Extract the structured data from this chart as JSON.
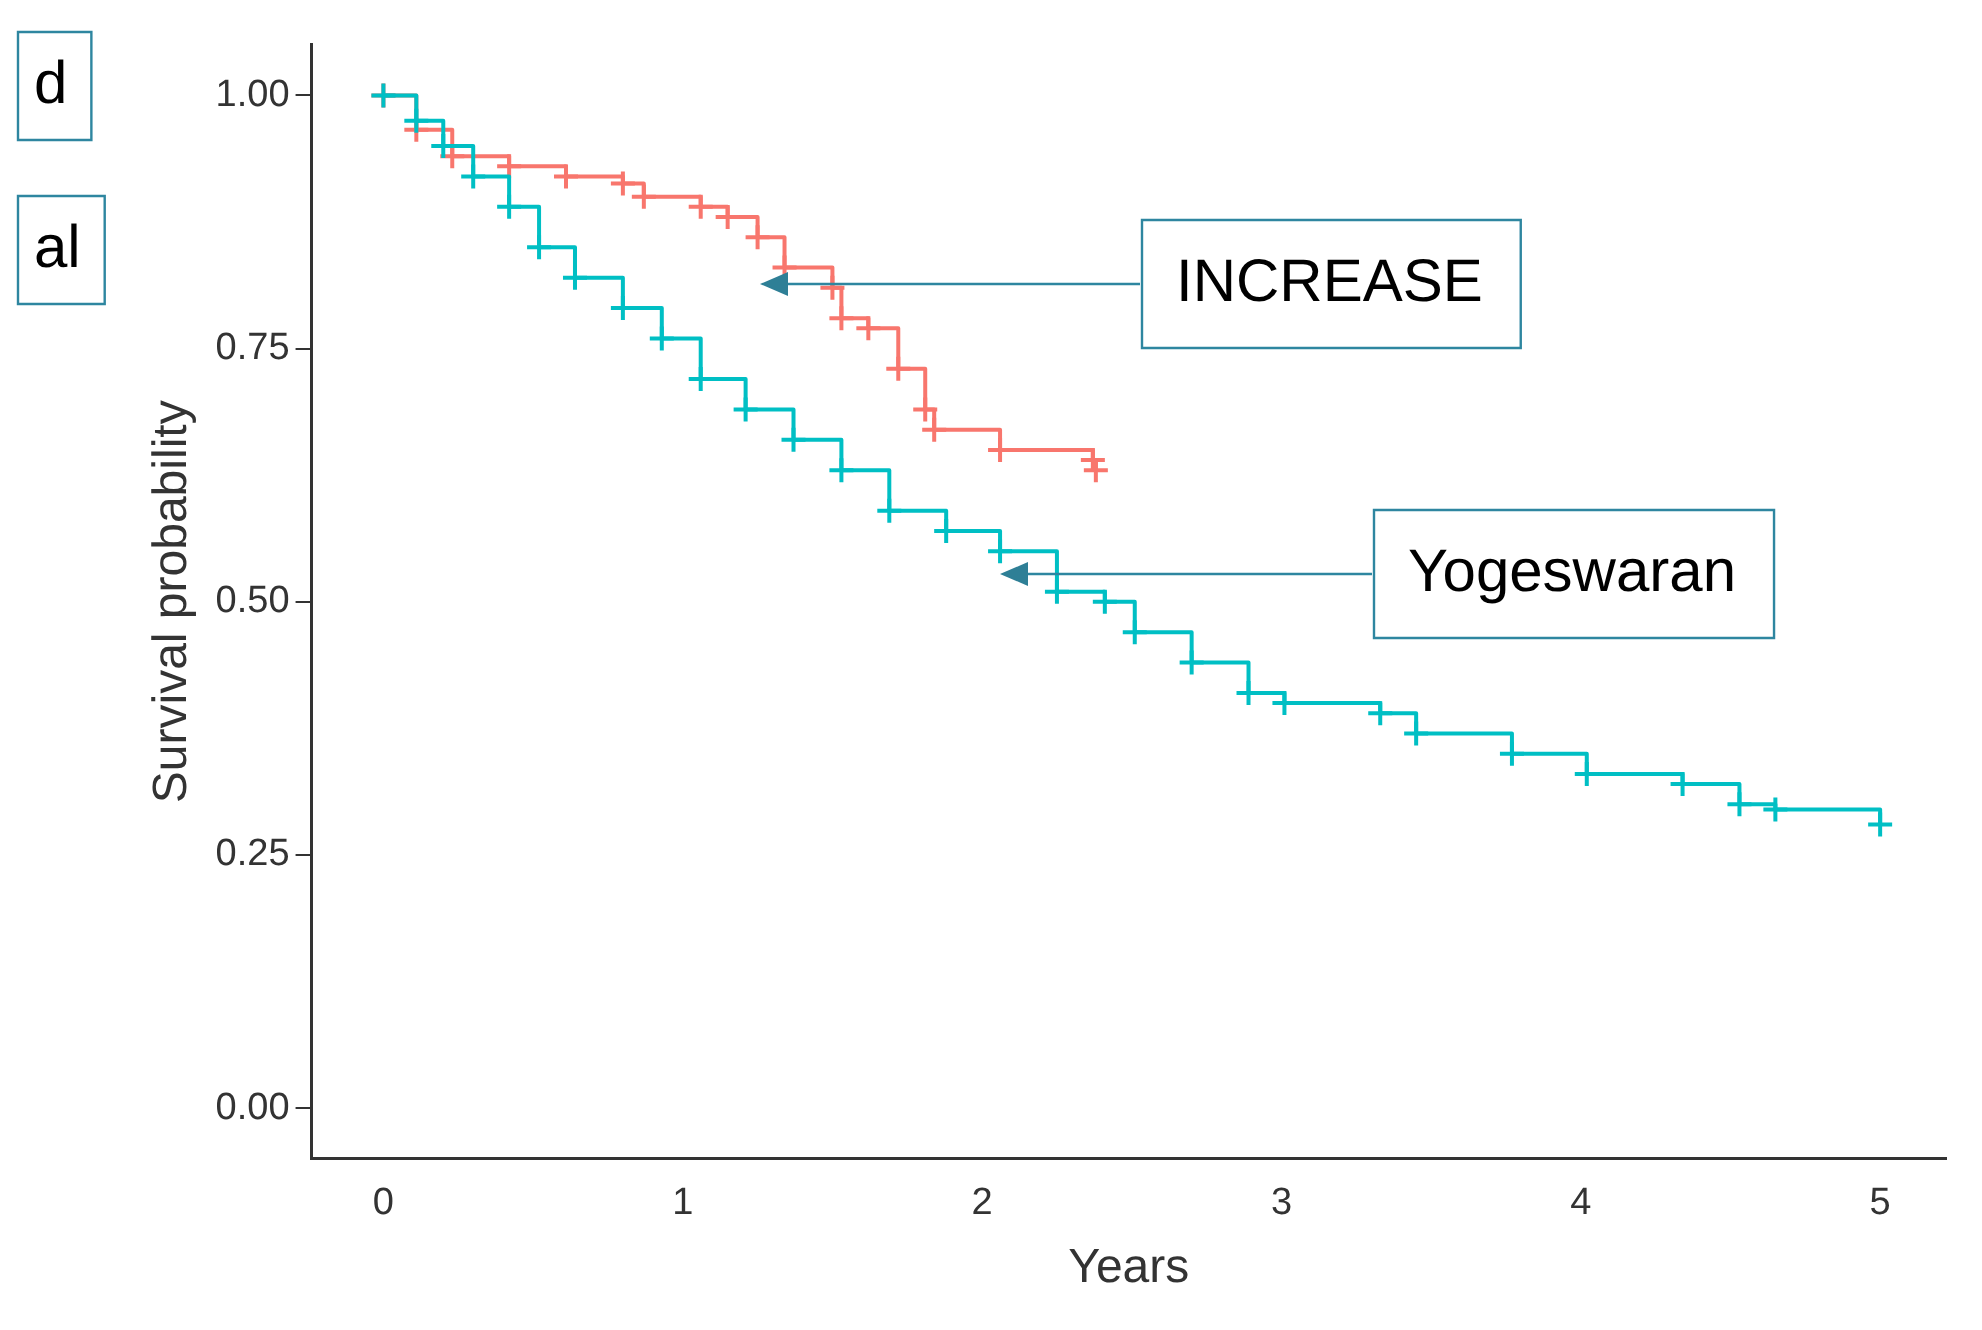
{
  "chart_data": {
    "type": "step",
    "xlabel": "Years",
    "ylabel": "Survival probability",
    "xlim": [
      -0.24,
      5.22
    ],
    "ylim": [
      -0.05,
      1.05
    ],
    "xticks": [
      0,
      1,
      2,
      3,
      4,
      5
    ],
    "yticks": [
      {
        "value": 0,
        "label": "0.00"
      },
      {
        "value": 0.25,
        "label": "0.25"
      },
      {
        "value": 0.5,
        "label": "0.50"
      },
      {
        "value": 0.75,
        "label": "0.75"
      },
      {
        "value": 1,
        "label": "1.00"
      }
    ],
    "grid": false,
    "legend": false,
    "marker": "cross",
    "line_style": "solid",
    "series": [
      {
        "color": "#f8766d",
        "x": [
          0,
          0.11,
          0.23,
          0.42,
          0.61,
          0.8,
          0.87,
          1.06,
          1.15,
          1.25,
          1.34,
          1.5,
          1.53,
          1.62,
          1.72,
          1.81,
          1.84,
          2.06,
          2.37,
          2.38
        ],
        "values": [
          1,
          0.966,
          0.94,
          0.93,
          0.92,
          0.913,
          0.9,
          0.89,
          0.88,
          0.86,
          0.83,
          0.81,
          0.78,
          0.77,
          0.73,
          0.69,
          0.67,
          0.65,
          0.64,
          0.63
        ]
      },
      {
        "color": "#00bfc4",
        "x": [
          0,
          0.11,
          0.2,
          0.3,
          0.42,
          0.52,
          0.64,
          0.8,
          0.93,
          1.06,
          1.21,
          1.37,
          1.53,
          1.69,
          1.88,
          2.06,
          2.25,
          2.41,
          2.51,
          2.7,
          2.89,
          3.01,
          3.33,
          3.45,
          3.77,
          4.02,
          4.34,
          4.53,
          4.65,
          5
        ],
        "values": [
          1,
          0.975,
          0.95,
          0.92,
          0.89,
          0.85,
          0.82,
          0.79,
          0.76,
          0.72,
          0.69,
          0.66,
          0.63,
          0.59,
          0.57,
          0.55,
          0.51,
          0.5,
          0.47,
          0.44,
          0.41,
          0.4,
          0.39,
          0.37,
          0.35,
          0.33,
          0.32,
          0.3,
          0.295,
          0.28
        ]
      }
    ],
    "annotations": [
      "d",
      "al",
      "INCREASE",
      "Yogeswaran"
    ]
  }
}
